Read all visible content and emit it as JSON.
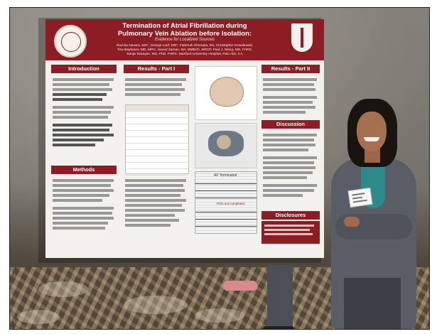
{
  "poster": {
    "title_line1": "Termination of Atrial Fibrillation during",
    "title_line2": "Pulmonary Vein Ablation before Isolation:",
    "subtitle": "Evidence for Localized Sources",
    "authors_line1": "Rachita Navara, MD*, George Leef, MD*, Fatemah Shenasa, BS, Christopher Kowalewski,",
    "authors_line2": "Tina Baykaner, MD, MPH, Junaid Zaman, MA, BMBCh, MRCP, Paul J. Wang, MD, FHRS,",
    "authors_line3": "Sanjiv Narayan, MD, PhD, FHRS. Stanford University Hospital, Palo Alto, CA",
    "sections": {
      "introduction": "Introduction",
      "methods": "Methods",
      "results1": "Results - Part I",
      "results2": "Results - Part II",
      "discussion": "Discussion",
      "disclosures": "Disclosures"
    },
    "figure_labels": {
      "af_terminated": "AF Terminated",
      "pvi_not_completed": "PVIs not completed"
    },
    "colors": {
      "header": "#8c1d24",
      "background": "#f3f1ec"
    }
  },
  "icons": {
    "left_logo": "university-seal-icon",
    "right_logo": "hospital-shield-icon"
  }
}
